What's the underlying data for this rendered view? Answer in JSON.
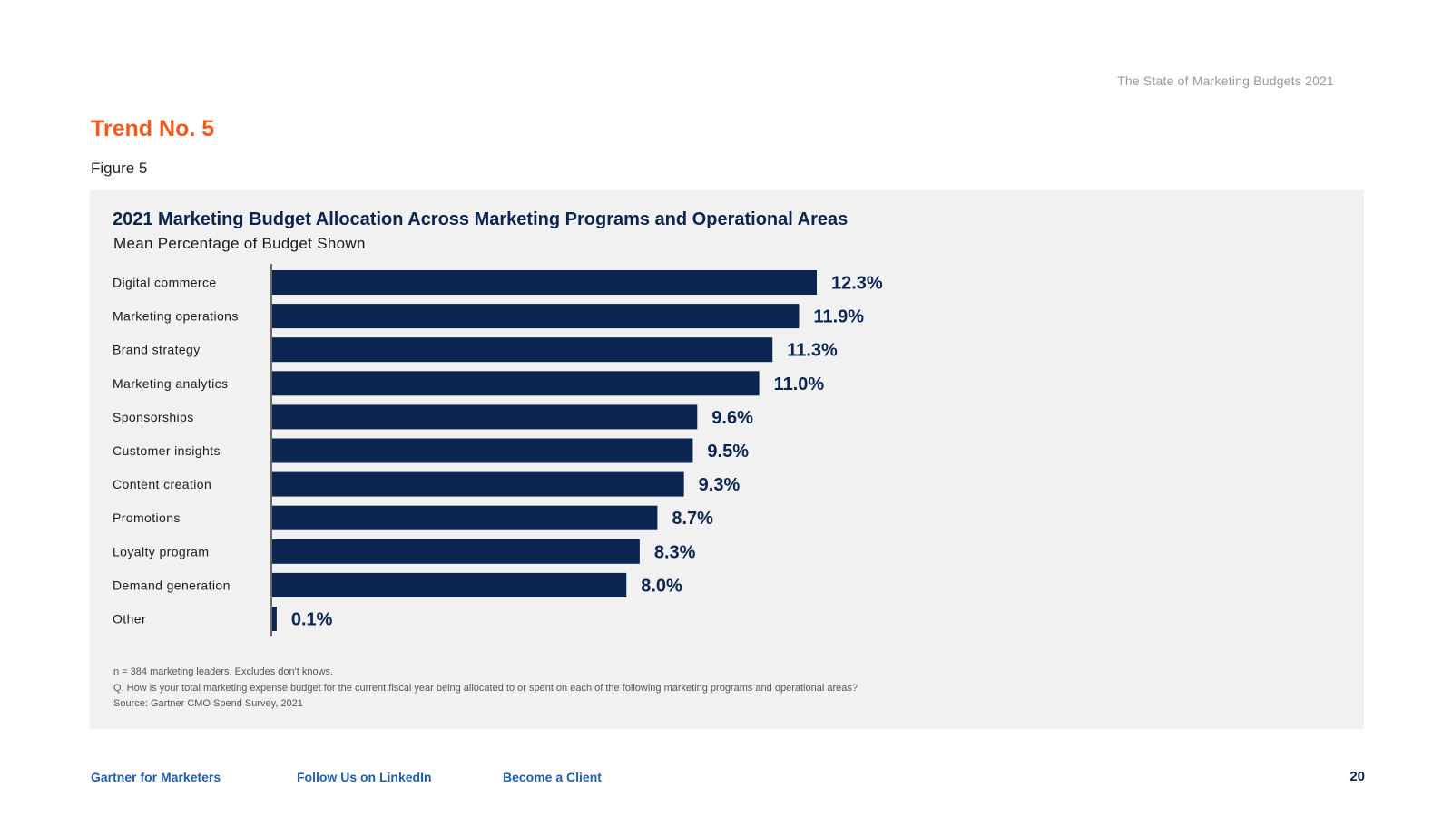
{
  "header": {
    "doc_title": "The State of Marketing Budgets 2021"
  },
  "trend": "Trend No. 5",
  "figure_label": "Figure 5",
  "chart_data": {
    "type": "bar",
    "orientation": "horizontal",
    "title": "2021 Marketing Budget Allocation Across Marketing Programs and Operational Areas",
    "subtitle": "Mean Percentage of Budget Shown",
    "categories": [
      "Digital commerce",
      "Marketing operations",
      "Brand strategy",
      "Marketing analytics",
      "Sponsorships",
      "Customer insights",
      "Content creation",
      "Promotions",
      "Loyalty program",
      "Demand generation",
      "Other"
    ],
    "values": [
      12.3,
      11.9,
      11.3,
      11.0,
      9.6,
      9.5,
      9.3,
      8.7,
      8.3,
      8.0,
      0.1
    ],
    "value_labels": [
      "12.3%",
      "11.9%",
      "11.3%",
      "11.0%",
      "9.6%",
      "9.5%",
      "9.3%",
      "8.7%",
      "8.3%",
      "8.0%",
      "0.1%"
    ],
    "bar_color": "#0b2550",
    "grid": false
  },
  "notes": [
    "n = 384 marketing leaders. Excludes don't knows.",
    "Q. How is your total marketing expense budget for the current fiscal year being allocated to or spent on each of the following marketing programs and operational areas?",
    "Source: Gartner CMO Spend Survey, 2021"
  ],
  "footer": {
    "links": [
      "Gartner for Marketers",
      "Follow Us on LinkedIn",
      "Become a Client"
    ],
    "page_number": "20"
  },
  "colors": {
    "accent": "#f05a1c",
    "navy": "#0b2550",
    "link": "#1f5fad",
    "panel": "#f1f1f1"
  }
}
